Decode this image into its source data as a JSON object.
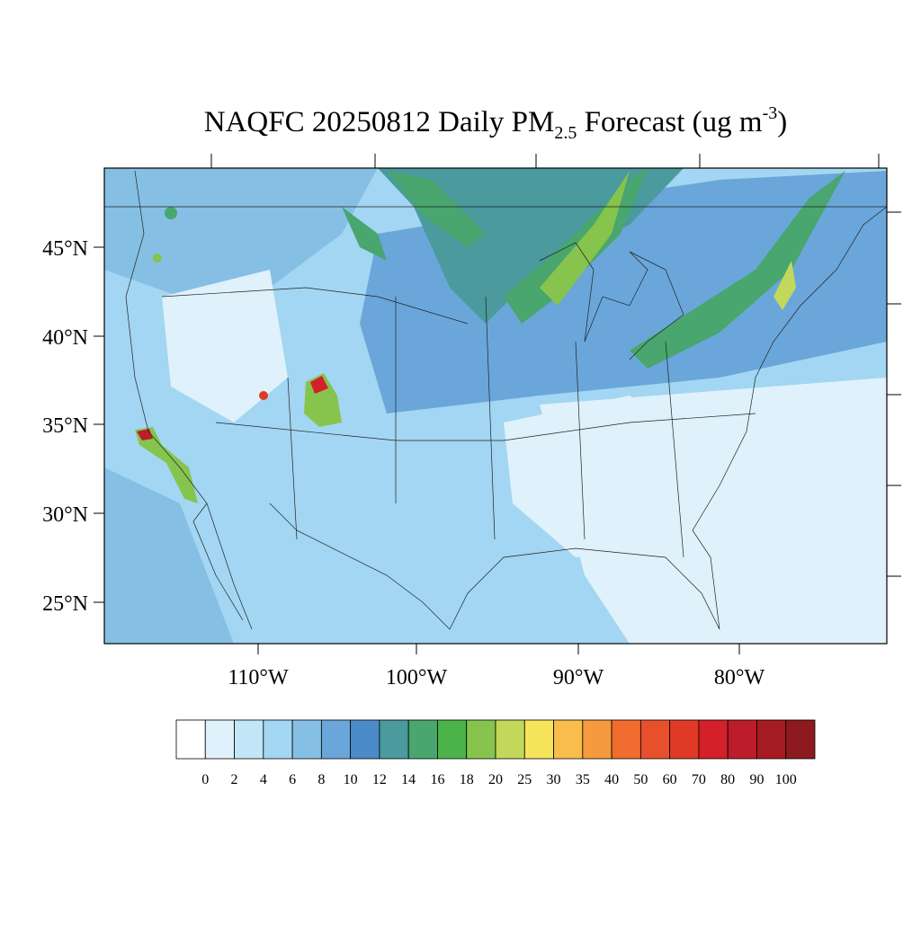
{
  "map": {
    "title": {
      "main": "NAQFC 20250812 Daily PM",
      "sub": "2.5",
      "mid": " Forecast (ug m",
      "sup": "-3",
      "end": ")"
    },
    "lat_labels": [
      "45°N",
      "40°N",
      "35°N",
      "30°N",
      "25°N"
    ],
    "lon_labels": [
      "110°W",
      "100°W",
      "90°W",
      "80°W"
    ],
    "colorbar": {
      "levels": [
        0,
        2,
        4,
        6,
        8,
        10,
        12,
        14,
        16,
        18,
        20,
        25,
        30,
        35,
        40,
        50,
        60,
        70,
        80,
        90,
        100
      ],
      "colors": [
        "#ffffff",
        "#dff1fb",
        "#c2e6f8",
        "#a2d6f2",
        "#86bfe4",
        "#6aa6d9",
        "#4b8bc9",
        "#4a9a9e",
        "#48a66e",
        "#4cb34a",
        "#86c44e",
        "#c3d85a",
        "#f6e45a",
        "#f8bd4a",
        "#f59a3e",
        "#f06c2f",
        "#e8502c",
        "#df3a26",
        "#d32029",
        "#bd1c2a",
        "#a71b23",
        "#8c1a1e"
      ]
    }
  }
}
